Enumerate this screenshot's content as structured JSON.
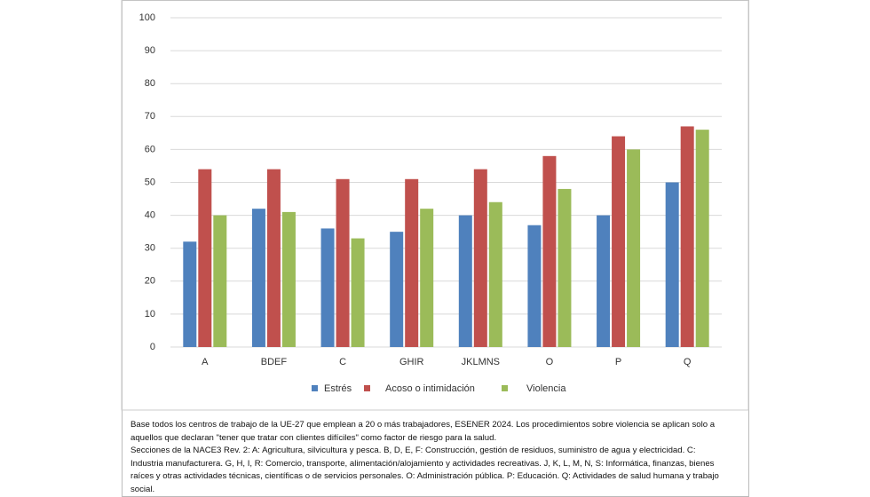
{
  "chart_data": {
    "type": "bar",
    "categories": [
      "A",
      "BDEF",
      "C",
      "GHIR",
      "JKLMNS",
      "O",
      "P",
      "Q"
    ],
    "series": [
      {
        "name": "Estrés",
        "color": "#4f81bd",
        "values": [
          32,
          42,
          36,
          35,
          40,
          37,
          40,
          50
        ]
      },
      {
        "name": "Acoso o intimidación",
        "color": "#c0504d",
        "values": [
          54,
          54,
          51,
          51,
          54,
          58,
          64,
          67
        ]
      },
      {
        "name": "Violencia",
        "color": "#9bbb59",
        "values": [
          40,
          41,
          33,
          42,
          44,
          48,
          60,
          66
        ]
      }
    ],
    "ylim": [
      0,
      100
    ],
    "yticks": [
      0,
      10,
      20,
      30,
      40,
      50,
      60,
      70,
      80,
      90,
      100
    ],
    "grid": true,
    "legend": "bottom"
  },
  "notes": [
    "Base todos los centros de trabajo de la UE-27 que emplean a 20 o más trabajadores, ESENER 2024. Los procedimientos sobre violencia se aplican solo a aquellos que declaran \"tener  que tratar con clientes difíciles\" como factor de riesgo para la salud.",
    "Secciones de la NACE3 Rev. 2: A: Agricultura, silvicultura y pesca. B, D, E, F: Construcción, gestión de residuos, suministro de agua y electricidad. C: Industria manufacturera. G, H, I, R:  Comercio, transporte, alimentación/alojamiento y actividades recreativas. J, K, L, M, N, S: Informática, finanzas, bienes raíces y otras actividades técnicas, científicas o de servicios  personales. O: Administración pública. P: Educación. Q: Actividades de salud humana y trabajo social."
  ]
}
